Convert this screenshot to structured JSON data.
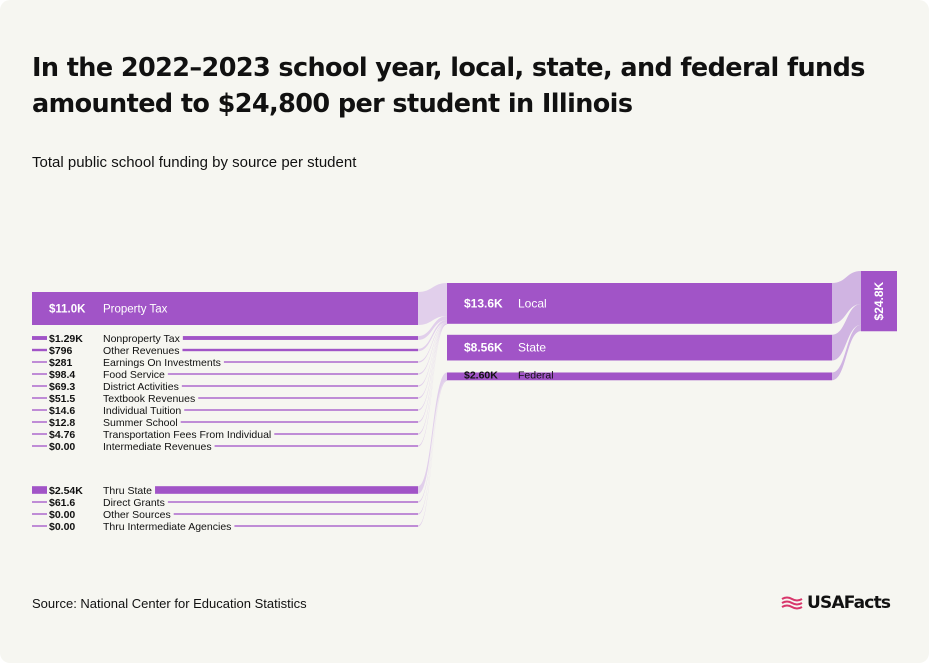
{
  "title": "In the 2022–2023 school year, local, state, and federal funds amounted to $24,800 per student in Illinois",
  "subtitle": "Total public school funding by source per student",
  "source": "Source: National Center for Education Statistics",
  "logo": {
    "text": "USAFacts",
    "icon": "usafacts-flag-icon"
  },
  "colors": {
    "primary": "#a154c7",
    "light": "#c9a8df",
    "link": "#ddc8ea",
    "background": "#f6f6f1",
    "text": "#111111"
  },
  "chart_data": {
    "type": "sankey",
    "unit": "USD per student",
    "total": {
      "label": "$24.8K",
      "value": 24800
    },
    "categories": [
      {
        "key": "local",
        "name": "Local",
        "label": "$13.6K",
        "value": 13600
      },
      {
        "key": "state",
        "name": "State",
        "label": "$8.56K",
        "value": 8560
      },
      {
        "key": "federal",
        "name": "Federal",
        "label": "$2.60K",
        "value": 2600
      }
    ],
    "groups": [
      {
        "target": "local",
        "sources": [
          {
            "name": "Property Tax",
            "label": "$11.0K",
            "value": 11000
          },
          {
            "name": "Nonproperty Tax",
            "label": "$1.29K",
            "value": 1290
          },
          {
            "name": "Other Revenues",
            "label": "$796",
            "value": 796
          },
          {
            "name": "Earnings On Investments",
            "label": "$281",
            "value": 281
          },
          {
            "name": "Food Service",
            "label": "$98.4",
            "value": 98.4
          },
          {
            "name": "District Activities",
            "label": "$69.3",
            "value": 69.3
          },
          {
            "name": "Textbook Revenues",
            "label": "$51.5",
            "value": 51.5
          },
          {
            "name": "Individual Tuition",
            "label": "$14.6",
            "value": 14.6
          },
          {
            "name": "Summer School",
            "label": "$12.8",
            "value": 12.8
          },
          {
            "name": "Transportation Fees From Individual",
            "label": "$4.76",
            "value": 4.76
          },
          {
            "name": "Intermediate Revenues",
            "label": "$0.00",
            "value": 0
          }
        ]
      },
      {
        "target": "federal",
        "sources": [
          {
            "name": "Thru State",
            "label": "$2.54K",
            "value": 2540
          },
          {
            "name": "Direct Grants",
            "label": "$61.6",
            "value": 61.6
          },
          {
            "name": "Other Sources",
            "label": "$0.00",
            "value": 0
          },
          {
            "name": "Thru Intermediate Agencies",
            "label": "$0.00",
            "value": 0
          }
        ]
      }
    ]
  }
}
